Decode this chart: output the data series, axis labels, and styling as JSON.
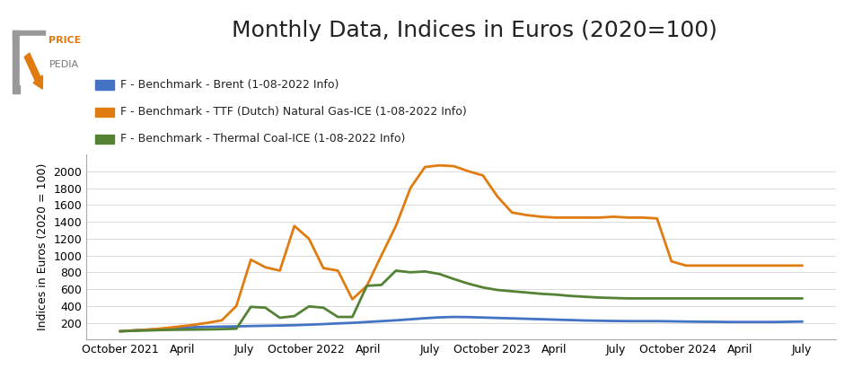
{
  "title": "Monthly Data, Indices in Euros (2020=100)",
  "ylabel": "Indices in Euros (2020 = 100)",
  "legend_labels": [
    "F - Benchmark - Brent (1-08-2022 Info)",
    "F - Benchmark - TTF (Dutch) Natural Gas-ICE (1-08-2022 Info)",
    "F - Benchmark - Thermal Coal-ICE (1-08-2022 Info)"
  ],
  "colors": {
    "brent": "#4472C4",
    "ttf": "#E07B10",
    "coal": "#548235"
  },
  "x_tick_labels": [
    "October 2021",
    "April",
    "July",
    "October 2022",
    "April",
    "July",
    "October 2023",
    "April",
    "July",
    "October 2024",
    "April",
    "July"
  ],
  "ylim": [
    0,
    2200
  ],
  "yticks": [
    200,
    400,
    600,
    800,
    1000,
    1200,
    1400,
    1600,
    1800,
    2000
  ],
  "brent": [
    100,
    112,
    120,
    130,
    140,
    148,
    152,
    155,
    158,
    162,
    165,
    168,
    172,
    178,
    185,
    193,
    200,
    210,
    220,
    230,
    242,
    255,
    265,
    270,
    268,
    263,
    258,
    253,
    248,
    243,
    238,
    233,
    228,
    225,
    222,
    220,
    220,
    220,
    218,
    215,
    213,
    212,
    210,
    210,
    210,
    210,
    212,
    215
  ],
  "ttf": [
    100,
    110,
    120,
    135,
    155,
    175,
    200,
    230,
    400,
    950,
    860,
    820,
    1350,
    1200,
    850,
    820,
    480,
    640,
    1000,
    1350,
    1800,
    2050,
    2070,
    2060,
    2000,
    1950,
    1700,
    1510,
    1480,
    1460,
    1450,
    1450,
    1450,
    1450,
    1460,
    1450,
    1450,
    1440,
    930,
    880,
    880,
    880,
    880,
    880,
    880,
    880,
    880,
    880
  ],
  "coal": [
    100,
    105,
    110,
    115,
    118,
    120,
    122,
    125,
    130,
    390,
    380,
    260,
    280,
    395,
    380,
    270,
    270,
    640,
    650,
    820,
    800,
    810,
    780,
    720,
    665,
    620,
    590,
    575,
    560,
    545,
    535,
    520,
    510,
    500,
    495,
    490,
    490,
    490,
    490,
    490,
    490,
    490,
    490,
    490,
    490,
    490,
    490,
    490
  ],
  "logo_color_orange": "#E07B10",
  "logo_color_grey": "#999999",
  "logo_text_price_color": "#E07B10",
  "logo_text_pedia_color": "#777777",
  "title_fontsize": 18,
  "tick_fontsize": 9,
  "ylabel_fontsize": 9,
  "legend_fontsize": 9
}
